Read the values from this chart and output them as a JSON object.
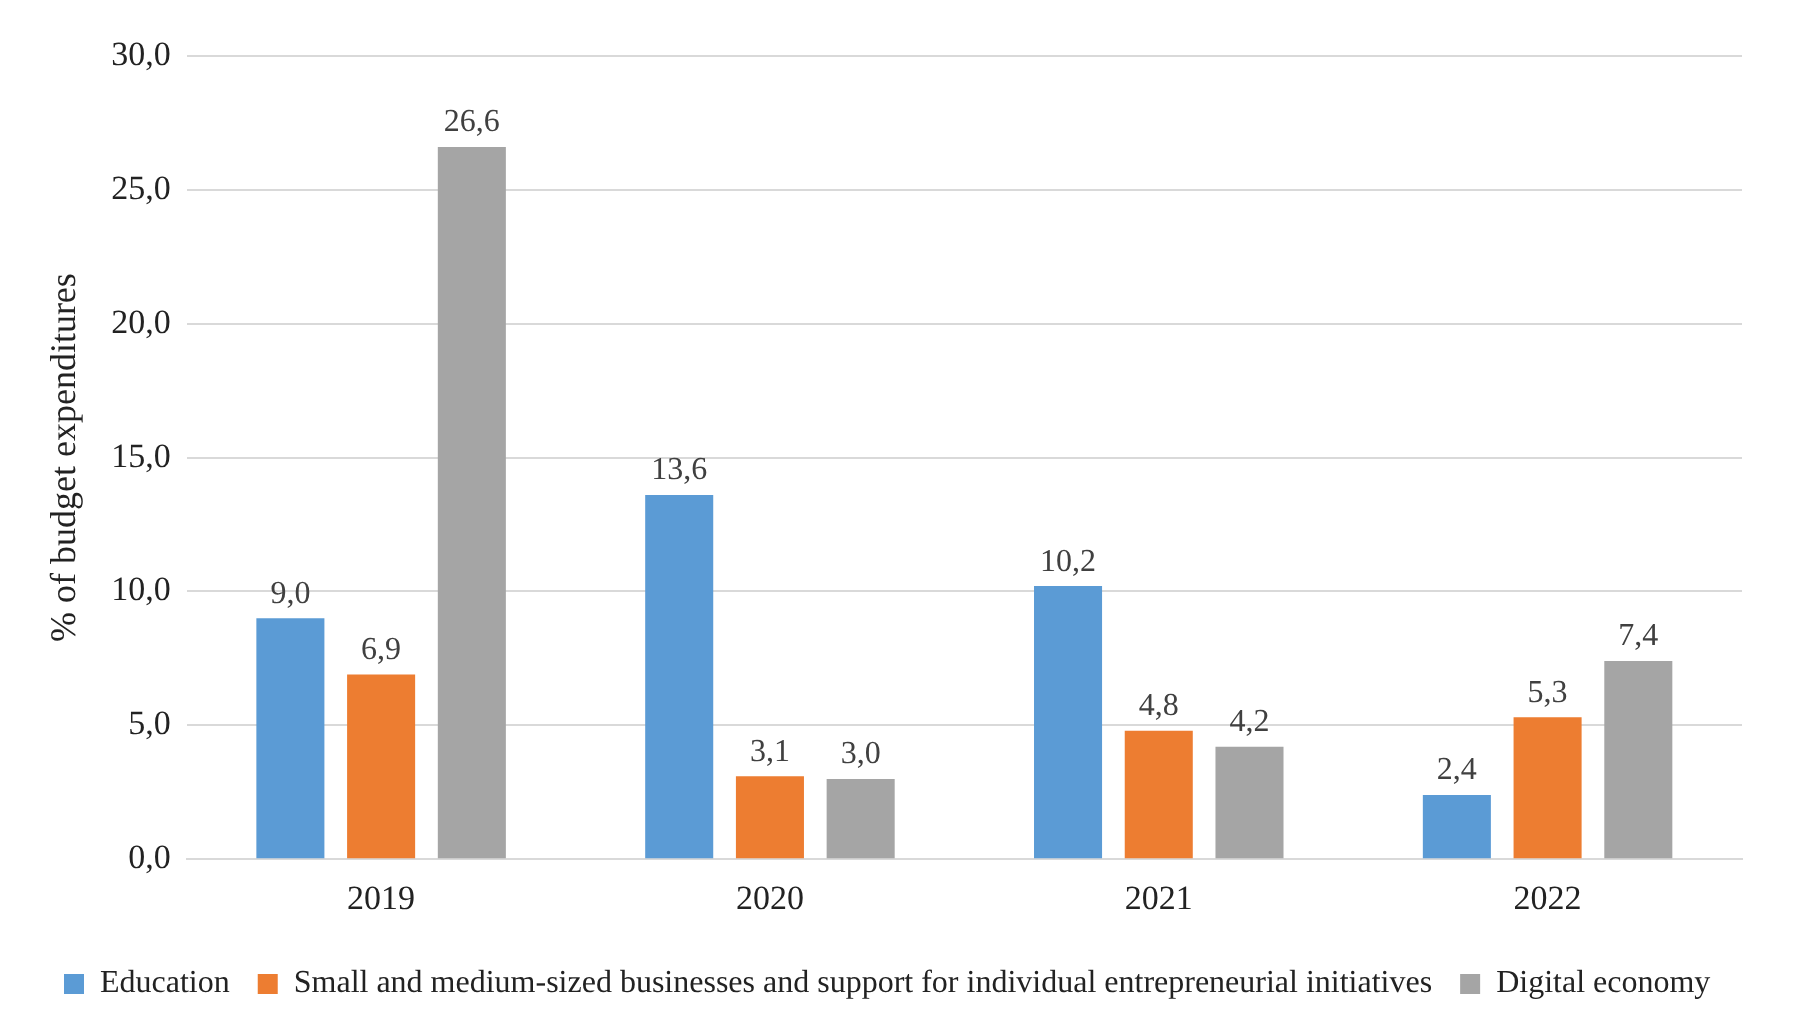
{
  "chart_data": {
    "type": "bar",
    "ylabel": "% of budget expenditures",
    "categories": [
      "2019",
      "2020",
      "2021",
      "2022"
    ],
    "series": [
      {
        "name": "Education",
        "color": "#5b9bd5",
        "values": [
          9.0,
          13.6,
          10.2,
          2.4
        ],
        "value_labels": [
          "9,0",
          "13,6",
          "10,2",
          "2,4"
        ]
      },
      {
        "name": "Small and medium-sized businesses and support for individual entrepreneurial initiatives",
        "color": "#ed7d31",
        "values": [
          6.9,
          3.1,
          4.8,
          5.3
        ],
        "value_labels": [
          "6,9",
          "3,1",
          "4,8",
          "5,3"
        ]
      },
      {
        "name": "Digital economy",
        "color": "#a5a5a5",
        "values": [
          26.6,
          3.0,
          4.2,
          7.4
        ],
        "value_labels": [
          "26,6",
          "3,0",
          "4,2",
          "7,4"
        ]
      }
    ],
    "ylim": [
      0,
      30
    ],
    "yticks": [
      {
        "value": 0,
        "label": "0,0"
      },
      {
        "value": 5,
        "label": "5,0"
      },
      {
        "value": 10,
        "label": "10,0"
      },
      {
        "value": 15,
        "label": "15,0"
      },
      {
        "value": 20,
        "label": "20,0"
      },
      {
        "value": 25,
        "label": "25,0"
      },
      {
        "value": 30,
        "label": "30,0"
      }
    ],
    "grid": "y",
    "legend": "bottom"
  }
}
